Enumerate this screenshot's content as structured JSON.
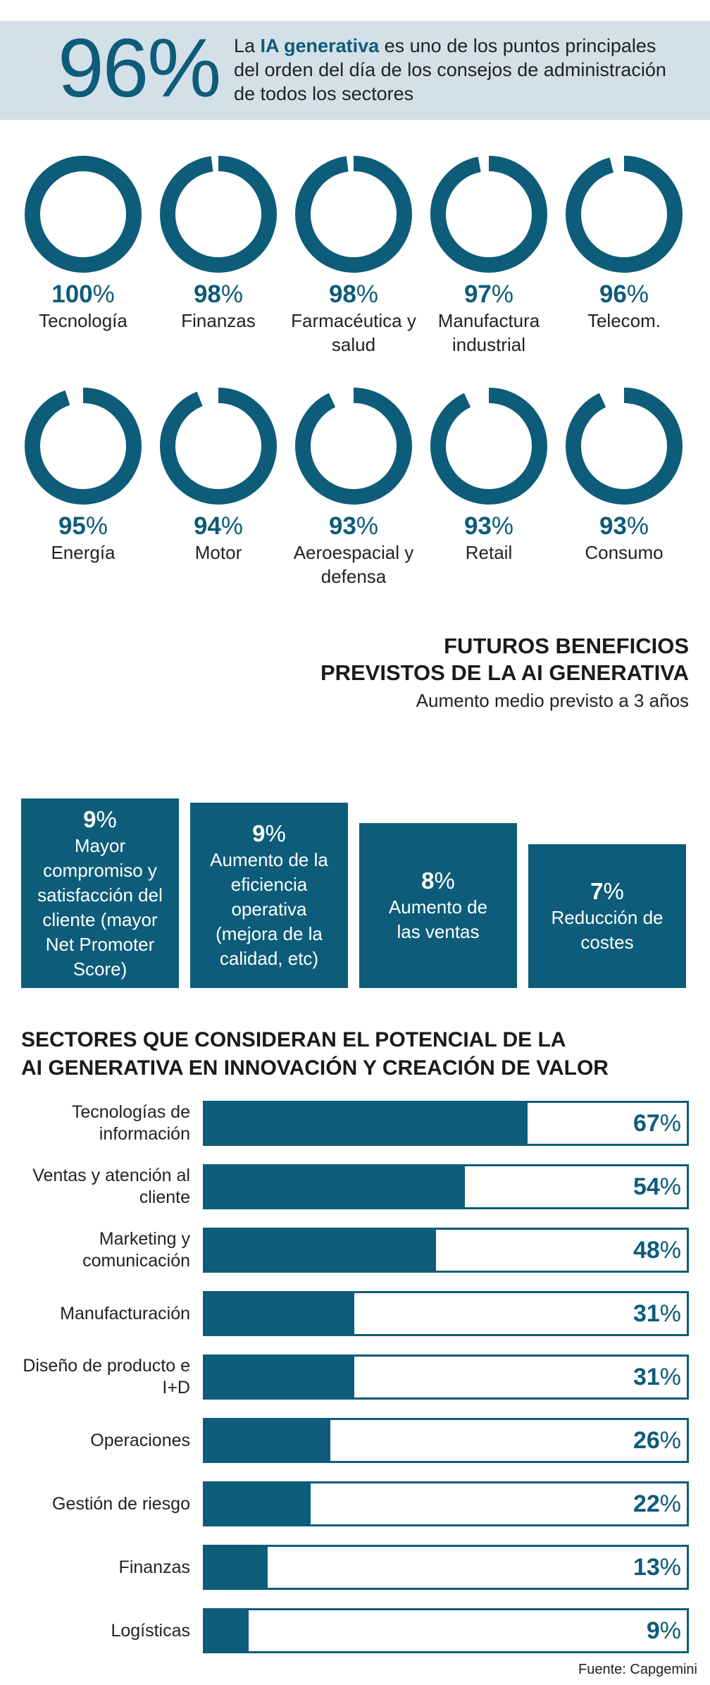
{
  "banner": {
    "stat": "96%",
    "text_pre": "La ",
    "text_highlight": "IA generativa",
    "text_post": " es uno de los puntos principales del orden del día de los consejos de administración de todos los sectores"
  },
  "chart_data": [
    {
      "type": "donut",
      "categories": [
        "Tecnología",
        "Finanzas",
        "Farmacéutica y salud",
        "Manufactura industrial",
        "Telecom.",
        "Energía",
        "Motor",
        "Aeroespacial y defensa",
        "Retail",
        "Consumo"
      ],
      "values": [
        100,
        98,
        98,
        97,
        96,
        95,
        94,
        93,
        93,
        93
      ],
      "value_labels": [
        "100",
        "98",
        "98",
        "97",
        "96",
        "95",
        "94",
        "93",
        "93",
        "93"
      ],
      "unit": "%",
      "color": "#0d5c79"
    },
    {
      "type": "bar",
      "title_lines": [
        "FUTUROS BENEFICIOS",
        "PREVISTOS DE LA AI GENERATIVA"
      ],
      "subtitle": "Aumento medio previsto a 3 años",
      "categories": [
        "Mayor compromiso y satisfacción del cliente (mayor Net Promoter Score)",
        "Aumento de la eficiencia operativa (mejora de la calidad, etc)",
        "Aumento de las ventas",
        "Reducción de costes"
      ],
      "values": [
        9,
        9,
        8,
        7
      ],
      "value_labels": [
        "9",
        "9",
        "8",
        "7"
      ],
      "unit": "%",
      "color": "#0d5c79"
    },
    {
      "type": "bar",
      "orientation": "horizontal",
      "title_lines": [
        "SECTORES QUE CONSIDERAN EL POTENCIAL DE LA",
        "AI GENERATIVA EN INNOVACIÓN Y CREACIÓN DE VALOR"
      ],
      "categories": [
        "Tecnologías de información",
        "Ventas y atención al cliente",
        "Marketing y comunicación",
        "Manufacturación",
        "Diseño de producto e I+D",
        "Operaciones",
        "Gestión de riesgo",
        "Finanzas",
        "Logísticas"
      ],
      "values": [
        67,
        54,
        48,
        31,
        31,
        26,
        22,
        13,
        9
      ],
      "value_labels": [
        "67",
        "54",
        "48",
        "31",
        "31",
        "26",
        "22",
        "13",
        "9"
      ],
      "unit": "%",
      "xlim": [
        0,
        100
      ],
      "color": "#0d5c79"
    }
  ],
  "source": "Fuente: Capgemini"
}
